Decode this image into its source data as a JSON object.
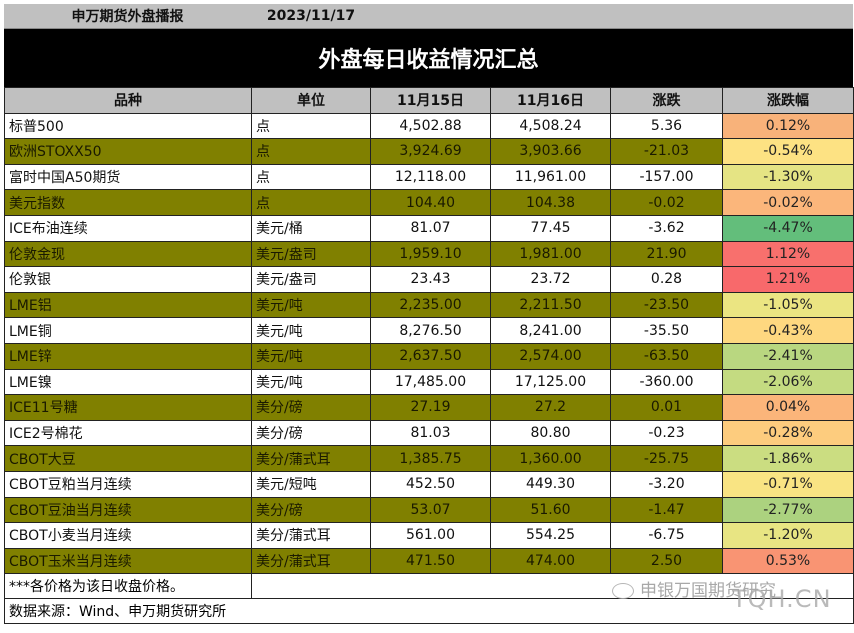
{
  "header": {
    "org": "申万期货外盘播报",
    "date": "2023/11/17",
    "title": "外盘每日收益情况汇总"
  },
  "columns": [
    "品种",
    "单位",
    "11月15日",
    "11月16日",
    "涨跌",
    "涨跌幅"
  ],
  "rows": [
    {
      "name": "标普500",
      "unit": "点",
      "d15": "4,502.88",
      "d16": "4,508.24",
      "chg": "5.36",
      "pct": "0.12%",
      "pct_color": "#f8b27a",
      "style": "white"
    },
    {
      "name": "欧洲STOXX50",
      "unit": "点",
      "d15": "3,924.69",
      "d16": "3,903.66",
      "chg": "-21.03",
      "pct": "-0.54%",
      "pct_color": "#fde283",
      "style": "olive"
    },
    {
      "name": "富时中国A50期货",
      "unit": "点",
      "d15": "12,118.00",
      "d16": "11,961.00",
      "chg": "-157.00",
      "pct": "-1.30%",
      "pct_color": "#e5e484",
      "style": "white"
    },
    {
      "name": "美元指数",
      "unit": "点",
      "d15": "104.40",
      "d16": "104.38",
      "chg": "-0.02",
      "pct": "-0.02%",
      "pct_color": "#fbb67b",
      "style": "olive"
    },
    {
      "name": "ICE布油连续",
      "unit": "美元/桶",
      "d15": "81.07",
      "d16": "77.45",
      "chg": "-3.62",
      "pct": "-4.47%",
      "pct_color": "#63be7b",
      "style": "white"
    },
    {
      "name": "伦敦金现",
      "unit": "美元/盎司",
      "d15": "1,959.10",
      "d16": "1,981.00",
      "chg": "21.90",
      "pct": "1.12%",
      "pct_color": "#f8706d",
      "style": "olive"
    },
    {
      "name": "伦敦银",
      "unit": "美元/盎司",
      "d15": "23.43",
      "d16": "23.72",
      "chg": "0.28",
      "pct": "1.21%",
      "pct_color": "#f8696b",
      "style": "white"
    },
    {
      "name": "LME铝",
      "unit": "美元/吨",
      "d15": "2,235.00",
      "d16": "2,211.50",
      "chg": "-23.50",
      "pct": "-1.05%",
      "pct_color": "#ebe582",
      "style": "olive"
    },
    {
      "name": "LME铜",
      "unit": "美元/吨",
      "d15": "8,276.50",
      "d16": "8,241.00",
      "chg": "-35.50",
      "pct": "-0.43%",
      "pct_color": "#fed880",
      "style": "white"
    },
    {
      "name": "LME锌",
      "unit": "美元/吨",
      "d15": "2,637.50",
      "d16": "2,574.00",
      "chg": "-63.50",
      "pct": "-2.41%",
      "pct_color": "#b9d780",
      "style": "olive"
    },
    {
      "name": "LME镍",
      "unit": "美元/吨",
      "d15": "17,485.00",
      "d16": "17,125.00",
      "chg": "-360.00",
      "pct": "-2.06%",
      "pct_color": "#c4db81",
      "style": "white"
    },
    {
      "name": "ICE11号糖",
      "unit": "美分/磅",
      "d15": "27.19",
      "d16": "27.2",
      "chg": "0.01",
      "pct": "0.04%",
      "pct_color": "#fbb57a",
      "style": "olive"
    },
    {
      "name": "ICE2号棉花",
      "unit": "美分/磅",
      "d15": "81.03",
      "d16": "80.80",
      "chg": "-0.23",
      "pct": "-0.28%",
      "pct_color": "#fdcc7e",
      "style": "white"
    },
    {
      "name": "CBOT大豆",
      "unit": "美分/蒲式耳",
      "d15": "1,385.75",
      "d16": "1,360.00",
      "chg": "-25.75",
      "pct": "-1.86%",
      "pct_color": "#cbdd81",
      "style": "olive"
    },
    {
      "name": "CBOT豆粕当月连续",
      "unit": "美元/短吨",
      "d15": "452.50",
      "d16": "449.30",
      "chg": "-3.20",
      "pct": "-0.71%",
      "pct_color": "#f9e483",
      "style": "white"
    },
    {
      "name": "CBOT豆油当月连续",
      "unit": "美分/磅",
      "d15": "53.07",
      "d16": "51.60",
      "chg": "-1.47",
      "pct": "-2.77%",
      "pct_color": "#acd27f",
      "style": "olive"
    },
    {
      "name": "CBOT小麦当月连续",
      "unit": "美分/蒲式耳",
      "d15": "561.00",
      "d16": "554.25",
      "chg": "-6.75",
      "pct": "-1.20%",
      "pct_color": "#e8e583",
      "style": "white"
    },
    {
      "name": "CBOT玉米当月连续",
      "unit": "美分/蒲式耳",
      "d15": "471.50",
      "d16": "474.00",
      "chg": "2.50",
      "pct": "0.53%",
      "pct_color": "#f99473",
      "style": "olive"
    }
  ],
  "footer": {
    "note": "***各价格为该日收盘价格。",
    "source": "数据来源：Wind、申万期货研究所"
  },
  "watermark": {
    "text": "申银万国期货研究",
    "site": "TQH.CN"
  }
}
